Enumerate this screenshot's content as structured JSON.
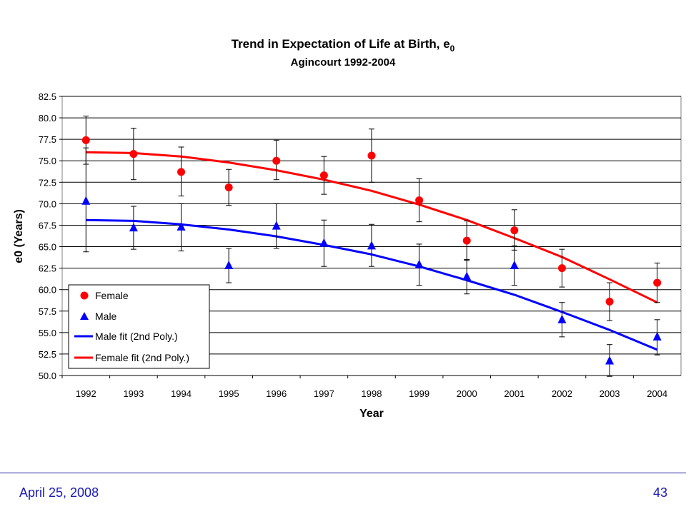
{
  "chart_data": {
    "type": "scatter",
    "title": "Trend in Expectation of Life at Birth, e",
    "title_subscript": "0",
    "subtitle": "Agincourt 1992-2004",
    "xlabel": "Year",
    "ylabel": "e0 (Years)",
    "categories": [
      "1992",
      "1993",
      "1994",
      "1995",
      "1996",
      "1997",
      "1998",
      "1999",
      "2000",
      "2001",
      "2002",
      "2003",
      "2004"
    ],
    "ylim": [
      50.0,
      82.5
    ],
    "yticks": [
      "50.0",
      "52.5",
      "55.0",
      "57.5",
      "60.0",
      "62.5",
      "65.0",
      "67.5",
      "70.0",
      "72.5",
      "75.0",
      "77.5",
      "80.0",
      "82.5"
    ],
    "ytick_values": [
      50.0,
      52.5,
      55.0,
      57.5,
      60.0,
      62.5,
      65.0,
      67.5,
      70.0,
      72.5,
      75.0,
      77.5,
      80.0,
      82.5
    ],
    "grid": true,
    "legend_position": "bottom-left",
    "series": [
      {
        "name": "Female",
        "marker": "circle",
        "color": "#ff0000",
        "values": [
          77.4,
          75.8,
          73.7,
          71.9,
          75.0,
          73.3,
          75.6,
          70.4,
          65.7,
          66.9,
          62.5,
          58.6,
          60.8
        ],
        "err_low": [
          74.6,
          72.8,
          70.9,
          69.8,
          72.8,
          71.1,
          72.5,
          67.9,
          63.4,
          64.6,
          60.3,
          56.4,
          58.5
        ],
        "err_high": [
          80.2,
          78.8,
          76.6,
          74.0,
          77.4,
          75.5,
          78.7,
          72.9,
          68.0,
          69.3,
          64.7,
          60.8,
          63.1
        ]
      },
      {
        "name": "Male",
        "marker": "triangle",
        "color": "#0000ff",
        "values": [
          70.3,
          67.2,
          67.3,
          62.8,
          67.4,
          65.4,
          65.1,
          62.9,
          61.5,
          62.8,
          56.5,
          51.7,
          54.5
        ],
        "err_low": [
          64.4,
          64.7,
          64.5,
          60.8,
          64.8,
          62.7,
          62.7,
          60.5,
          59.5,
          60.5,
          54.5,
          49.9,
          52.4
        ],
        "err_high": [
          76.5,
          69.7,
          70.0,
          64.8,
          70.0,
          68.1,
          67.6,
          65.3,
          63.5,
          65.1,
          58.5,
          53.6,
          56.5
        ]
      },
      {
        "name": "Male fit (2nd Poly.)",
        "type": "line",
        "color": "#0000ff",
        "values": [
          68.1,
          68.0,
          67.6,
          67.0,
          66.2,
          65.2,
          64.1,
          62.7,
          61.1,
          59.4,
          57.4,
          55.3,
          53.0
        ]
      },
      {
        "name": "Female fit (2nd Poly.)",
        "type": "line",
        "color": "#ff0000",
        "values": [
          76.0,
          75.9,
          75.5,
          74.8,
          73.9,
          72.8,
          71.5,
          69.9,
          68.1,
          66.0,
          63.8,
          61.2,
          58.5
        ]
      }
    ]
  },
  "footer": {
    "date": "April 25, 2008",
    "page_number": "43"
  }
}
